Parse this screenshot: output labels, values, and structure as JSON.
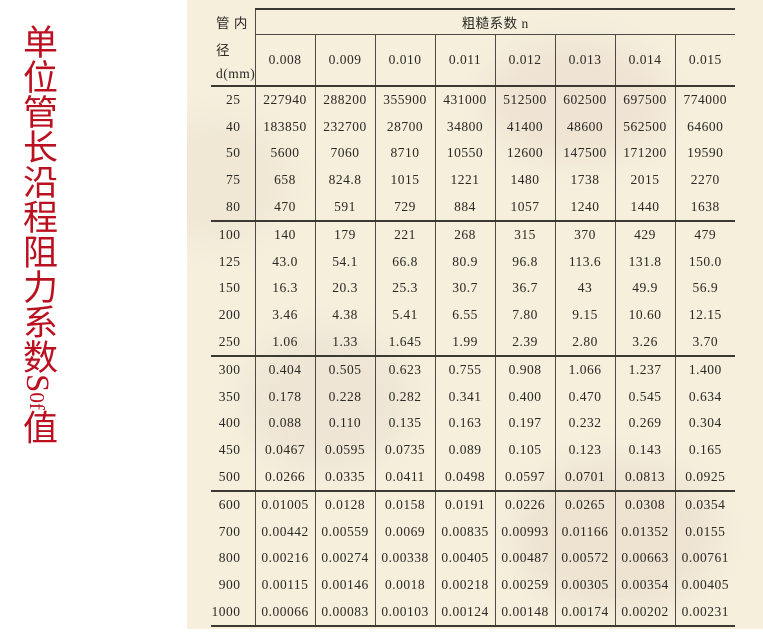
{
  "page": {
    "side_title_cjk": "单位管长沿程阻力系数",
    "side_title_symbol_main": "S",
    "side_title_symbol_sub": "0f",
    "side_title_suffix": "值",
    "side_title_color": "#bb1020",
    "paper_color": "#f5efdc"
  },
  "table": {
    "corner_header_lines": [
      "管 内",
      "径",
      "d(mm)"
    ],
    "roughness_header": "粗糙系数 n",
    "n_values": [
      "0.008",
      "0.009",
      "0.010",
      "0.011",
      "0.012",
      "0.013",
      "0.014",
      "0.015"
    ],
    "group_size": 5,
    "rows": [
      {
        "d": "25",
        "values": [
          "227940",
          "288200",
          "355900",
          "431000",
          "512500",
          "602500",
          "697500",
          "774000"
        ]
      },
      {
        "d": "40",
        "values": [
          "183850",
          "232700",
          "28700",
          "34800",
          "41400",
          "48600",
          "562500",
          "64600"
        ]
      },
      {
        "d": "50",
        "values": [
          "5600",
          "7060",
          "8710",
          "10550",
          "12600",
          "147500",
          "171200",
          "19590"
        ]
      },
      {
        "d": "75",
        "values": [
          "658",
          "824.8",
          "1015",
          "1221",
          "1480",
          "1738",
          "2015",
          "2270"
        ]
      },
      {
        "d": "80",
        "values": [
          "470",
          "591",
          "729",
          "884",
          "1057",
          "1240",
          "1440",
          "1638"
        ]
      },
      {
        "d": "100",
        "values": [
          "140",
          "179",
          "221",
          "268",
          "315",
          "370",
          "429",
          "479"
        ]
      },
      {
        "d": "125",
        "values": [
          "43.0",
          "54.1",
          "66.8",
          "80.9",
          "96.8",
          "113.6",
          "131.8",
          "150.0"
        ]
      },
      {
        "d": "150",
        "values": [
          "16.3",
          "20.3",
          "25.3",
          "30.7",
          "36.7",
          "43",
          "49.9",
          "56.9"
        ]
      },
      {
        "d": "200",
        "values": [
          "3.46",
          "4.38",
          "5.41",
          "6.55",
          "7.80",
          "9.15",
          "10.60",
          "12.15"
        ]
      },
      {
        "d": "250",
        "values": [
          "1.06",
          "1.33",
          "1.645",
          "1.99",
          "2.39",
          "2.80",
          "3.26",
          "3.70"
        ]
      },
      {
        "d": "300",
        "values": [
          "0.404",
          "0.505",
          "0.623",
          "0.755",
          "0.908",
          "1.066",
          "1.237",
          "1.400"
        ]
      },
      {
        "d": "350",
        "values": [
          "0.178",
          "0.228",
          "0.282",
          "0.341",
          "0.400",
          "0.470",
          "0.545",
          "0.634"
        ]
      },
      {
        "d": "400",
        "values": [
          "0.088",
          "0.110",
          "0.135",
          "0.163",
          "0.197",
          "0.232",
          "0.269",
          "0.304"
        ]
      },
      {
        "d": "450",
        "values": [
          "0.0467",
          "0.0595",
          "0.0735",
          "0.089",
          "0.105",
          "0.123",
          "0.143",
          "0.165"
        ]
      },
      {
        "d": "500",
        "values": [
          "0.0266",
          "0.0335",
          "0.0411",
          "0.0498",
          "0.0597",
          "0.0701",
          "0.0813",
          "0.0925"
        ]
      },
      {
        "d": "600",
        "values": [
          "0.01005",
          "0.0128",
          "0.0158",
          "0.0191",
          "0.0226",
          "0.0265",
          "0.0308",
          "0.0354"
        ]
      },
      {
        "d": "700",
        "values": [
          "0.00442",
          "0.00559",
          "0.0069",
          "0.00835",
          "0.00993",
          "0.01166",
          "0.01352",
          "0.0155"
        ]
      },
      {
        "d": "800",
        "values": [
          "0.00216",
          "0.00274",
          "0.00338",
          "0.00405",
          "0.00487",
          "0.00572",
          "0.00663",
          "0.00761"
        ]
      },
      {
        "d": "900",
        "values": [
          "0.00115",
          "0.00146",
          "0.0018",
          "0.00218",
          "0.00259",
          "0.00305",
          "0.00354",
          "0.00405"
        ]
      },
      {
        "d": "1000",
        "values": [
          "0.00066",
          "0.00083",
          "0.00103",
          "0.00124",
          "0.00148",
          "0.00174",
          "0.00202",
          "0.00231"
        ]
      }
    ]
  }
}
